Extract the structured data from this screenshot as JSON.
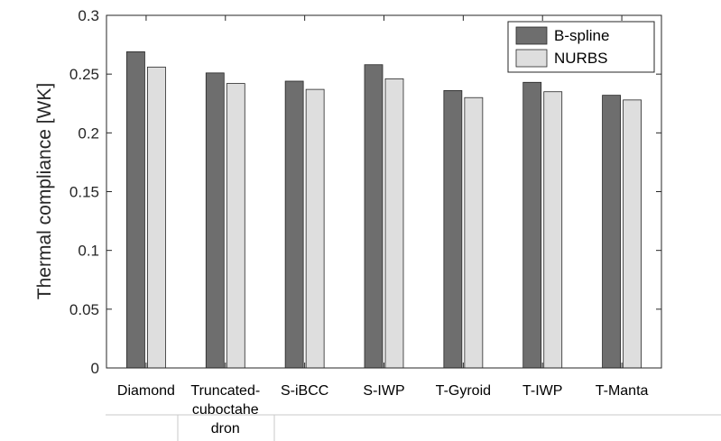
{
  "chart_data": {
    "type": "bar",
    "categories": [
      [
        "Diamond"
      ],
      [
        "Truncated-",
        "cuboctahe",
        "dron"
      ],
      [
        "S-iBCC"
      ],
      [
        "S-IWP"
      ],
      [
        "T-Gyroid"
      ],
      [
        "T-IWP"
      ],
      [
        "T-Manta"
      ]
    ],
    "series": [
      {
        "name": "B-spline",
        "color": "#6e6e6e",
        "values": [
          0.269,
          0.251,
          0.244,
          0.258,
          0.236,
          0.243,
          0.232
        ]
      },
      {
        "name": "NURBS",
        "color": "#dedede",
        "values": [
          0.256,
          0.242,
          0.237,
          0.246,
          0.23,
          0.235,
          0.228
        ]
      }
    ],
    "ylabel": "Thermal compliance [WK]",
    "ylim": [
      0,
      0.3
    ],
    "yticks": [
      "0",
      "0.05",
      "0.1",
      "0.15",
      "0.2",
      "0.25",
      "0.3"
    ],
    "grid": false,
    "legend": "top-right"
  }
}
